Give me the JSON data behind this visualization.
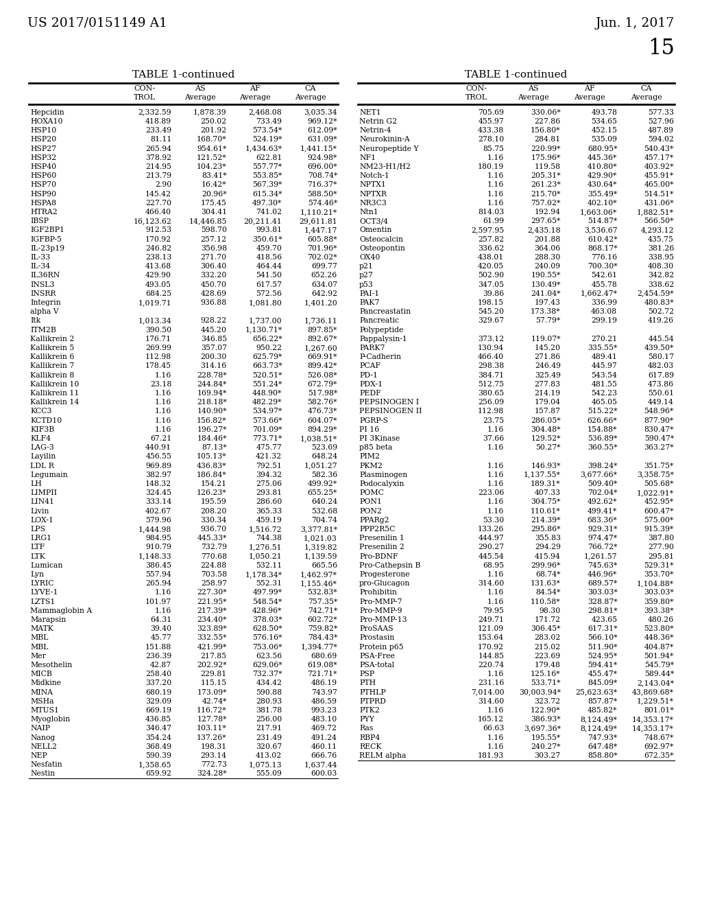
{
  "header_left": "US 2017/0151149 A1",
  "header_right": "Jun. 1, 2017",
  "page_number": "15",
  "table_title": "TABLE 1-continued",
  "left_data": [
    [
      "Hepcidin",
      "2,332.59",
      "1,878.39",
      "2,468.08",
      "3,035.34"
    ],
    [
      "HOXA10",
      "418.89",
      "250.02",
      "733.49",
      "969.12*"
    ],
    [
      "HSP10",
      "233.49",
      "201.92",
      "573.54*",
      "612.09*"
    ],
    [
      "HSP20",
      "81.11",
      "168.70*",
      "524.19*",
      "631.09*"
    ],
    [
      "HSP27",
      "265.94",
      "954.61*",
      "1,434.63*",
      "1,441.15*"
    ],
    [
      "HSP32",
      "378.92",
      "121.52*",
      "622.81",
      "924.98*"
    ],
    [
      "HSP40",
      "214.95",
      "104.23*",
      "557.77*",
      "696.00*"
    ],
    [
      "HSP60",
      "213.79",
      "83.41*",
      "553.85*",
      "708.74*"
    ],
    [
      "HSP70",
      "2.90",
      "16.42*",
      "567.39*",
      "716.37*"
    ],
    [
      "HSP90",
      "145.42",
      "20.96*",
      "615.34*",
      "588.50*"
    ],
    [
      "HSPA8",
      "227.70",
      "175.45",
      "497.30*",
      "574.46*"
    ],
    [
      "HTRA2",
      "466.40",
      "304.41",
      "741.02",
      "1,110.21*"
    ],
    [
      "IBSP",
      "16,123.62",
      "14,446.85",
      "20,211.41",
      "29,611.81"
    ],
    [
      "IGF2BP1",
      "912.53",
      "598.70",
      "993.81",
      "1,447.17"
    ],
    [
      "IGFBP-5",
      "170.92",
      "257.12",
      "350.61*",
      "605.88*"
    ],
    [
      "IL-23p19",
      "246.82",
      "356.98",
      "459.70",
      "701.96*"
    ],
    [
      "IL-33",
      "238.13",
      "271.70",
      "418.56",
      "702.02*"
    ],
    [
      "IL-34",
      "413.68",
      "306.40",
      "464.44",
      "699.77"
    ],
    [
      "IL36RN",
      "429.90",
      "332.20",
      "541.50",
      "652.26"
    ],
    [
      "INSL3",
      "493.05",
      "450.70",
      "617.57",
      "634.07"
    ],
    [
      "INSRR",
      "684.25",
      "428.69",
      "572.56",
      "642.92"
    ],
    [
      "Integrin",
      "1,019.71",
      "936.88",
      "1,081.80",
      "1,401.20"
    ],
    [
      "alpha V",
      "",
      "",
      "",
      ""
    ],
    [
      "Itk",
      "1,013.34",
      "928.22",
      "1,737.00",
      "1,736.11"
    ],
    [
      "ITM2B",
      "390.50",
      "445.20",
      "1,130.71*",
      "897.85*"
    ],
    [
      "Kallikrein 2",
      "176.71",
      "346.85",
      "656.22*",
      "892.67*"
    ],
    [
      "Kallikrein 5",
      "269.99",
      "357.07",
      "950.22",
      "1,267.60"
    ],
    [
      "Kallikrein 6",
      "112.98",
      "200.30",
      "625.79*",
      "669.91*"
    ],
    [
      "Kallikrein 7",
      "178.45",
      "314.16",
      "663.73*",
      "899.42*"
    ],
    [
      "Kallikrein 8",
      "1.16",
      "228.78*",
      "520.51*",
      "526.08*"
    ],
    [
      "Kallikrein 10",
      "23.18",
      "244.84*",
      "551.24*",
      "672.79*"
    ],
    [
      "Kallikrein 11",
      "1.16",
      "169.94*",
      "448.90*",
      "517.98*"
    ],
    [
      "Kallikrein 14",
      "1.16",
      "218.18*",
      "482.29*",
      "582.76*"
    ],
    [
      "KCC3",
      "1.16",
      "140.90*",
      "534.97*",
      "476.73*"
    ],
    [
      "KCTD10",
      "1.16",
      "156.82*",
      "573.66*",
      "604.07*"
    ],
    [
      "KIF3B",
      "1.16",
      "196.27*",
      "701.09*",
      "894.29*"
    ],
    [
      "KLF4",
      "67.21",
      "184.46*",
      "773.71*",
      "1,038.51*"
    ],
    [
      "LAG-3",
      "440.91",
      "87.13*",
      "475.77",
      "523.69"
    ],
    [
      "Layilin",
      "456.55",
      "105.13*",
      "421.32",
      "648.24"
    ],
    [
      "LDL R",
      "969.89",
      "436.83*",
      "792.51",
      "1,051.27"
    ],
    [
      "Legumain",
      "382.97",
      "186.84*",
      "394.32",
      "582.36"
    ],
    [
      "LH",
      "148.32",
      "154.21",
      "275.06",
      "499.92*"
    ],
    [
      "LIMPII",
      "324.45",
      "126.23*",
      "293.81",
      "655.25*"
    ],
    [
      "LIN41",
      "333.14",
      "195.59",
      "286.60",
      "640.24"
    ],
    [
      "Livin",
      "402.67",
      "208.20",
      "365.33",
      "532.68"
    ],
    [
      "LOX-1",
      "579.96",
      "330.34",
      "459.19",
      "704.74"
    ],
    [
      "LPS",
      "1,444.98",
      "936.70",
      "1,516.72",
      "3,377.81*"
    ],
    [
      "LRG1",
      "984.95",
      "445.33*",
      "744.38",
      "1,021.03"
    ],
    [
      "LTF",
      "910.79",
      "732.79",
      "1,276.51",
      "1,319.82"
    ],
    [
      "LTK",
      "1,148.33",
      "770.68",
      "1,050.21",
      "1,139.59"
    ],
    [
      "Lumican",
      "386.45",
      "224.88",
      "532.11",
      "665.56"
    ],
    [
      "Lyn",
      "557.94",
      "703.58",
      "1,178.34*",
      "1,462.97*"
    ],
    [
      "LYRIC",
      "265.94",
      "258.97",
      "552.31",
      "1,155.46*"
    ],
    [
      "LYVE-1",
      "1.16",
      "227.30*",
      "497.99*",
      "532.83*"
    ],
    [
      "LZTS1",
      "101.97",
      "221.95*",
      "548.54*",
      "757.35*"
    ],
    [
      "Mammaglobin A",
      "1.16",
      "217.39*",
      "428.96*",
      "742.71*"
    ],
    [
      "Marapsin",
      "64.31",
      "234.40*",
      "378.03*",
      "602.72*"
    ],
    [
      "MATK",
      "39.40",
      "323.89*",
      "628.50*",
      "759.82*"
    ],
    [
      "MBL",
      "45.77",
      "332.55*",
      "576.16*",
      "784.43*"
    ],
    [
      "MBL",
      "151.88",
      "421.99*",
      "753.06*",
      "1,394.77*"
    ],
    [
      "Mer",
      "236.39",
      "217.85",
      "623.56",
      "680.69"
    ],
    [
      "Mesothelin",
      "42.87",
      "202.92*",
      "629.06*",
      "619.08*"
    ],
    [
      "MICB",
      "258.40",
      "229.81",
      "732.37*",
      "721.71*"
    ],
    [
      "Midkine",
      "337.20",
      "115.15",
      "434.42",
      "486.19"
    ],
    [
      "MINA",
      "680.19",
      "173.09*",
      "590.88",
      "743.97"
    ],
    [
      "MSHa",
      "329.09",
      "42.74*",
      "280.93",
      "486.59"
    ],
    [
      "MTUS1",
      "669.19",
      "116.72*",
      "381.78",
      "993.23"
    ],
    [
      "Myoglobin",
      "436.85",
      "127.78*",
      "256.00",
      "483.10"
    ],
    [
      "NAIP",
      "346.47",
      "103.11*",
      "217.91",
      "469.72"
    ],
    [
      "Nanog",
      "354.24",
      "137.26*",
      "231.49",
      "491.24"
    ],
    [
      "NELL2",
      "368.49",
      "198.31",
      "320.67",
      "460.11"
    ],
    [
      "NEP",
      "590.39",
      "293.14",
      "413.02",
      "666.76"
    ],
    [
      "Nesfatin",
      "1,358.65",
      "772.73",
      "1,075.13",
      "1,637.44"
    ],
    [
      "Nestin",
      "659.92",
      "324.28*",
      "555.09",
      "600.03"
    ]
  ],
  "right_data": [
    [
      "NET1",
      "705.69",
      "330.06*",
      "493.78",
      "577.33"
    ],
    [
      "Netrin G2",
      "455.97",
      "227.86",
      "534.65",
      "527.96"
    ],
    [
      "Netrin-4",
      "433.38",
      "156.80*",
      "452.15",
      "487.89"
    ],
    [
      "Neurokinin-A",
      "278.10",
      "284.81",
      "535.09",
      "594.02"
    ],
    [
      "Neuropeptide Y",
      "85.75",
      "220.99*",
      "680.95*",
      "540.43*"
    ],
    [
      "NF1",
      "1.16",
      "175.96*",
      "445.36*",
      "457.17*"
    ],
    [
      "NM23-H1/H2",
      "180.19",
      "119.58",
      "410.80*",
      "403.92*"
    ],
    [
      "Notch-1",
      "1.16",
      "205.31*",
      "429.90*",
      "455.91*"
    ],
    [
      "NPTX1",
      "1.16",
      "261.23*",
      "430.64*",
      "465.00*"
    ],
    [
      "NPTXR",
      "1.16",
      "215.70*",
      "355.49*",
      "514.51*"
    ],
    [
      "NR3C3",
      "1.16",
      "757.02*",
      "402.10*",
      "431.06*"
    ],
    [
      "Ntn1",
      "814.03",
      "192.94",
      "1,663.06*",
      "1,882.51*"
    ],
    [
      "OCT3/4",
      "61.99",
      "297.65*",
      "514.87*",
      "566.50*"
    ],
    [
      "Omentin",
      "2,597.95",
      "2,435.18",
      "3,536.67",
      "4,293.12"
    ],
    [
      "Osteocalcin",
      "257.82",
      "201.88",
      "610.42*",
      "435.75"
    ],
    [
      "Osteopontin",
      "336.62",
      "364.06",
      "868.17*",
      "381.26"
    ],
    [
      "OX40",
      "438.01",
      "288.30",
      "776.16",
      "338.95"
    ],
    [
      "p21",
      "420.05",
      "240.09",
      "700.30*",
      "408.30"
    ],
    [
      "p27",
      "502.90",
      "190.55*",
      "542.61",
      "342.82"
    ],
    [
      "p53",
      "347.05",
      "130.49*",
      "455.78",
      "338.62"
    ],
    [
      "PAI-1",
      "39.86",
      "241.04*",
      "1,662.47*",
      "2,454.59*"
    ],
    [
      "PAK7",
      "198.15",
      "197.43",
      "336.99",
      "480.83*"
    ],
    [
      "Pancreastatin",
      "545.20",
      "173.38*",
      "463.08",
      "502.72"
    ],
    [
      "Pancreatic",
      "329.67",
      "57.79*",
      "299.19",
      "419.26"
    ],
    [
      "Polypeptide",
      "",
      "",
      "",
      ""
    ],
    [
      "Pappalysin-1",
      "373.12",
      "119.07*",
      "270.21",
      "445.54"
    ],
    [
      "PARK7",
      "130.94",
      "145.20",
      "335.55*",
      "439.50*"
    ],
    [
      "P-Cadherin",
      "466.40",
      "271.86",
      "489.41",
      "580.17"
    ],
    [
      "PCAF",
      "298.38",
      "246.49",
      "445.97",
      "482.03"
    ],
    [
      "PD-1",
      "384.71",
      "325.49",
      "543.54",
      "617.89"
    ],
    [
      "PDX-1",
      "512.75",
      "277.83",
      "481.55",
      "473.86"
    ],
    [
      "PEDF",
      "380.65",
      "214.19",
      "542.23",
      "550.61"
    ],
    [
      "PEPSINOGEN I",
      "256.09",
      "179.04",
      "465.05",
      "449.14"
    ],
    [
      "PEPSINOGEN II",
      "112.98",
      "157.87",
      "515.22*",
      "548.96*"
    ],
    [
      "PGRP-S",
      "23.75",
      "286.05*",
      "626.66*",
      "877.90*"
    ],
    [
      "PI 16",
      "1.16",
      "304.48*",
      "154.88*",
      "830.47*"
    ],
    [
      "PI 3Kinase",
      "37.66",
      "129.52*",
      "536.89*",
      "590.47*"
    ],
    [
      "p85 beta",
      "1.16",
      "50.27*",
      "360.55*",
      "363.27*"
    ],
    [
      "PIM2",
      "",
      "",
      "",
      ""
    ],
    [
      "PKM2",
      "1.16",
      "146.93*",
      "398.24*",
      "351.75*"
    ],
    [
      "Plasminogen",
      "1.16",
      "1,137.55*",
      "3,677.66*",
      "3,358.75*"
    ],
    [
      "Podocalyxin",
      "1.16",
      "189.31*",
      "509.40*",
      "505.68*"
    ],
    [
      "POMC",
      "223.06",
      "407.33",
      "702.04*",
      "1,022.91*"
    ],
    [
      "PON1",
      "1.16",
      "304.75*",
      "492.62*",
      "452.95*"
    ],
    [
      "PON2",
      "1.16",
      "110.61*",
      "499.41*",
      "600.47*"
    ],
    [
      "PPARg2",
      "53.30",
      "214.39*",
      "683.36*",
      "575.00*"
    ],
    [
      "PPP2R5C",
      "133.26",
      "295.86*",
      "929.31*",
      "915.39*"
    ],
    [
      "Presenilin 1",
      "444.97",
      "355.83",
      "974.47*",
      "387.80"
    ],
    [
      "Presenilin 2",
      "290.27",
      "294.29",
      "766.72*",
      "277.90"
    ],
    [
      "Pro-BDNF",
      "445.54",
      "415.94",
      "1,261.57",
      "295.81"
    ],
    [
      "Pro-Cathepsin B",
      "68.95",
      "299.96*",
      "745.63*",
      "529.31*"
    ],
    [
      "Progesterone",
      "1.16",
      "68.74*",
      "446.96*",
      "353.70*"
    ],
    [
      "pro-Glucagon",
      "314.60",
      "131.63*",
      "689.57*",
      "1,104.88*"
    ],
    [
      "Prohibitin",
      "1.16",
      "84.54*",
      "303.03*",
      "303.03*"
    ],
    [
      "Pro-MMP-7",
      "1.16",
      "110.58*",
      "328.87*",
      "359.80*"
    ],
    [
      "Pro-MMP-9",
      "79.95",
      "98.30",
      "298.81*",
      "393.38*"
    ],
    [
      "Pro-MMP-13",
      "249.71",
      "171.72",
      "423.65",
      "480.26"
    ],
    [
      "ProSAAS",
      "121.09",
      "306.45*",
      "617.31*",
      "523.80*"
    ],
    [
      "Prostasin",
      "153.64",
      "283.02",
      "566.10*",
      "448.36*"
    ],
    [
      "Protein p65",
      "170.92",
      "215.02",
      "511.90*",
      "404.87*"
    ],
    [
      "PSA-Free",
      "144.85",
      "223.69",
      "524.95*",
      "501.94*"
    ],
    [
      "PSA-total",
      "220.74",
      "179.48",
      "594.41*",
      "545.79*"
    ],
    [
      "PSP",
      "1.16",
      "125.16*",
      "455.47*",
      "589.44*"
    ],
    [
      "PTH",
      "231.16",
      "533.71*",
      "845.09*",
      "2,143.04*"
    ],
    [
      "PTHLP",
      "7,014.00",
      "30,003.94*",
      "25,623.63*",
      "43,869.68*"
    ],
    [
      "PTPRD",
      "314.60",
      "323.72",
      "857.87*",
      "1,229.51*"
    ],
    [
      "PTK2",
      "1.16",
      "122.90*",
      "485.82*",
      "801.01*"
    ],
    [
      "PYY",
      "165.12",
      "386.93*",
      "8,124.49*",
      "14,353.17*"
    ],
    [
      "Ras",
      "66.63",
      "3,697.36*",
      "8,124.49*",
      "14,353.17*"
    ],
    [
      "RBP4",
      "1.16",
      "195.55*",
      "747.93*",
      "748.67*"
    ],
    [
      "RECK",
      "1.16",
      "240.27*",
      "647.48*",
      "692.97*"
    ],
    [
      "RELM alpha",
      "181.93",
      "303.27",
      "858.80*",
      "672.35*"
    ]
  ]
}
